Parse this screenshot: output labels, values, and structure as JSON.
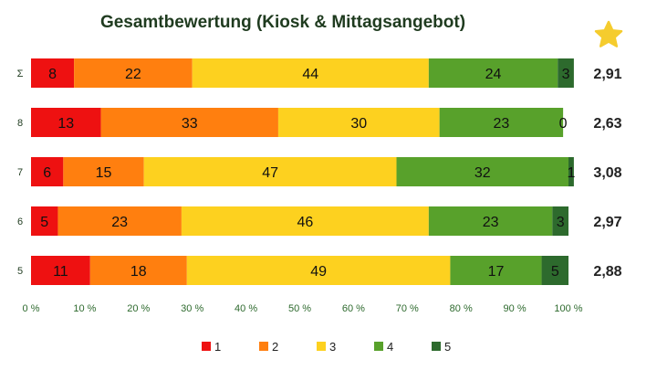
{
  "chart_data": {
    "type": "bar",
    "orientation": "horizontal",
    "stacked": true,
    "title": "Gesamtbewertung (Kiosk & Mittagsangebot)",
    "categories": [
      "Σ",
      "8",
      "7",
      "6",
      "5"
    ],
    "series": [
      {
        "name": "1",
        "color": "#ee1111",
        "values": [
          8,
          13,
          6,
          5,
          11
        ]
      },
      {
        "name": "2",
        "color": "#ff7f0f",
        "values": [
          22,
          33,
          15,
          23,
          18
        ]
      },
      {
        "name": "3",
        "color": "#fdd11f",
        "values": [
          44,
          30,
          47,
          46,
          49
        ]
      },
      {
        "name": "4",
        "color": "#58a12b",
        "values": [
          24,
          23,
          32,
          23,
          17
        ]
      },
      {
        "name": "5",
        "color": "#2d6a2d",
        "values": [
          3,
          0,
          1,
          3,
          5
        ]
      }
    ],
    "averages": [
      "2,91",
      "2,63",
      "3,08",
      "2,97",
      "2,88"
    ],
    "x_ticks": [
      "0 %",
      "10 %",
      "20 %",
      "30 %",
      "40 %",
      "50 %",
      "60 %",
      "70 %",
      "80 %",
      "90 %",
      "100 %"
    ],
    "xlim": [
      0,
      100
    ],
    "legend_position": "bottom",
    "grid": false
  },
  "icons": {
    "star": "star-icon",
    "star_color": "#f5cc2e"
  }
}
